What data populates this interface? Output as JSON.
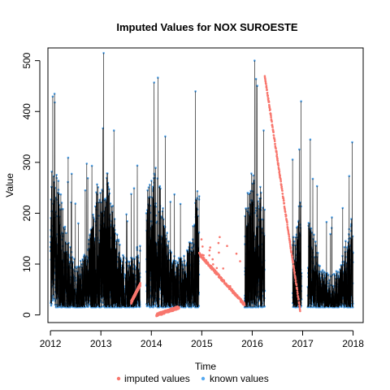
{
  "chart_data": {
    "type": "scatter",
    "title": "Imputed Values for  NOX SUROESTE",
    "xlabel": "Time",
    "ylabel": "Value",
    "xlim": [
      2011.95,
      2018.2
    ],
    "ylim": [
      -15,
      525
    ],
    "x_ticks": [
      2012,
      2013,
      2014,
      2015,
      2016,
      2017,
      2018
    ],
    "x_tick_labels": [
      "2012",
      "2013",
      "2014",
      "2015",
      "2016",
      "2017",
      "2018"
    ],
    "y_ticks": [
      0,
      100,
      200,
      300,
      400,
      500
    ],
    "y_tick_labels": [
      "0",
      "100",
      "200",
      "300",
      "400",
      "500"
    ],
    "grid": false,
    "legend_position": "bottom",
    "series": [
      {
        "name": "imputed values",
        "color": "#F8766D",
        "segments": [
          {
            "x": [
              2013.6,
              2013.78
            ],
            "y": [
              25,
              60
            ]
          },
          {
            "x": [
              2014.1,
              2014.55
            ],
            "y": [
              0,
              15
            ]
          },
          {
            "x": [
              2014.95,
              2015.85
            ],
            "y": [
              120,
              20
            ],
            "peak": 170
          },
          {
            "x": [
              2016.25,
              2016.95
            ],
            "y": [
              470,
              10
            ]
          }
        ]
      },
      {
        "name": "known values",
        "color": "#56A9F0",
        "blocks": [
          {
            "start": 2012.0,
            "end": 2013.78,
            "peak": 515
          },
          {
            "start": 2013.9,
            "end": 2014.95,
            "peak": 505
          },
          {
            "start": 2015.85,
            "end": 2016.25,
            "peak": 500
          },
          {
            "start": 2016.8,
            "end": 2016.98,
            "peak": 420
          },
          {
            "start": 2017.1,
            "end": 2018.0,
            "peak": 345
          }
        ]
      }
    ]
  }
}
